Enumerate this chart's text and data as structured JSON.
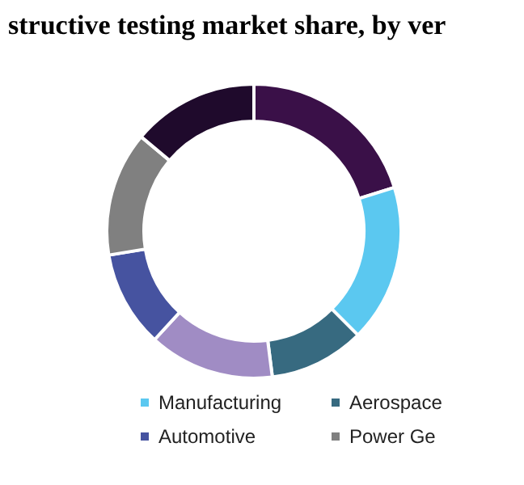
{
  "chart_data": {
    "type": "donut",
    "title": "structive testing market share, by ver",
    "categories": [
      null,
      "Manufacturing",
      "Aerospace",
      null,
      "Automotive",
      "Power Ge",
      null
    ],
    "values": [
      20.2,
      17.3,
      10.5,
      13.8,
      10.6,
      13.7,
      13.9
    ],
    "colors": [
      "#3a1048",
      "#5bc8f0",
      "#376a80",
      "#a08cc4",
      "#4653a0",
      "#808080",
      "#1f0a2c"
    ],
    "legend": "bottom"
  }
}
